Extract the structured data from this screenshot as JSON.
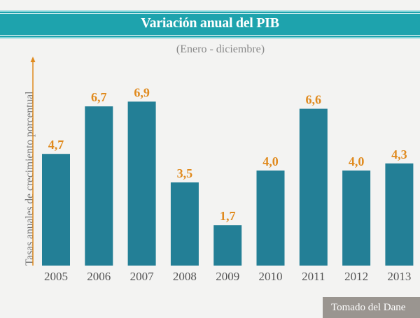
{
  "header": {
    "title": "Variación anual del PIB",
    "subtitle": "(Enero - diciembre)"
  },
  "source_label": "Tomado del Dane",
  "colors": {
    "bar": "#237f96",
    "value_label": "#e08a1e",
    "title_band": "#1ea3ad",
    "axis_arrow": "#e08a1e"
  },
  "chart_data": {
    "type": "bar",
    "title": "Variación anual del PIB",
    "subtitle": "(Enero - diciembre)",
    "xlabel": "",
    "ylabel": "Tasas anuales de crecimiento porcentual",
    "categories": [
      "2005",
      "2006",
      "2007",
      "2008",
      "2009",
      "2010",
      "2011",
      "2012",
      "2013"
    ],
    "values": [
      4.7,
      6.7,
      6.9,
      3.5,
      1.7,
      4.0,
      6.6,
      4.0,
      4.3
    ],
    "value_labels": [
      "4,7",
      "6,7",
      "6,9",
      "3,5",
      "1,7",
      "4,0",
      "6,6",
      "4,0",
      "4,3"
    ],
    "ylim": [
      0,
      8
    ],
    "grid": false,
    "legend": "none"
  }
}
